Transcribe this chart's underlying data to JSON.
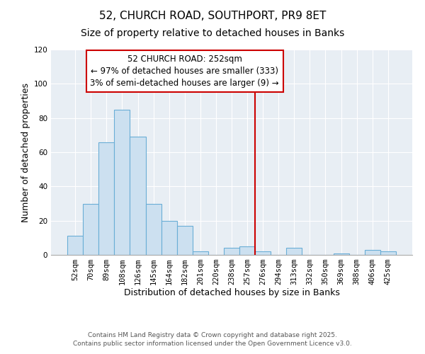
{
  "title": "52, CHURCH ROAD, SOUTHPORT, PR9 8ET",
  "subtitle": "Size of property relative to detached houses in Banks",
  "xlabel": "Distribution of detached houses by size in Banks",
  "ylabel": "Number of detached properties",
  "bar_labels": [
    "52sqm",
    "70sqm",
    "89sqm",
    "108sqm",
    "126sqm",
    "145sqm",
    "164sqm",
    "182sqm",
    "201sqm",
    "220sqm",
    "238sqm",
    "257sqm",
    "276sqm",
    "294sqm",
    "313sqm",
    "332sqm",
    "350sqm",
    "369sqm",
    "388sqm",
    "406sqm",
    "425sqm"
  ],
  "bar_values": [
    11,
    30,
    66,
    85,
    69,
    30,
    20,
    17,
    2,
    0,
    4,
    5,
    2,
    0,
    4,
    0,
    0,
    1,
    0,
    3,
    2
  ],
  "bar_color": "#cce0f0",
  "bar_edge_color": "#6aaed6",
  "ylim": [
    0,
    120
  ],
  "yticks": [
    0,
    20,
    40,
    60,
    80,
    100,
    120
  ],
  "vline_x": 11.5,
  "vline_color": "#cc0000",
  "annotation_title": "52 CHURCH ROAD: 252sqm",
  "annotation_line1": "← 97% of detached houses are smaller (333)",
  "annotation_line2": "3% of semi-detached houses are larger (9) →",
  "footer1": "Contains HM Land Registry data © Crown copyright and database right 2025.",
  "footer2": "Contains public sector information licensed under the Open Government Licence v3.0.",
  "background_color": "#ffffff",
  "plot_bg_color": "#e8eef4",
  "grid_color": "#ffffff",
  "title_fontsize": 11,
  "axis_label_fontsize": 9,
  "tick_fontsize": 7.5,
  "annotation_fontsize": 8.5,
  "footer_fontsize": 6.5
}
